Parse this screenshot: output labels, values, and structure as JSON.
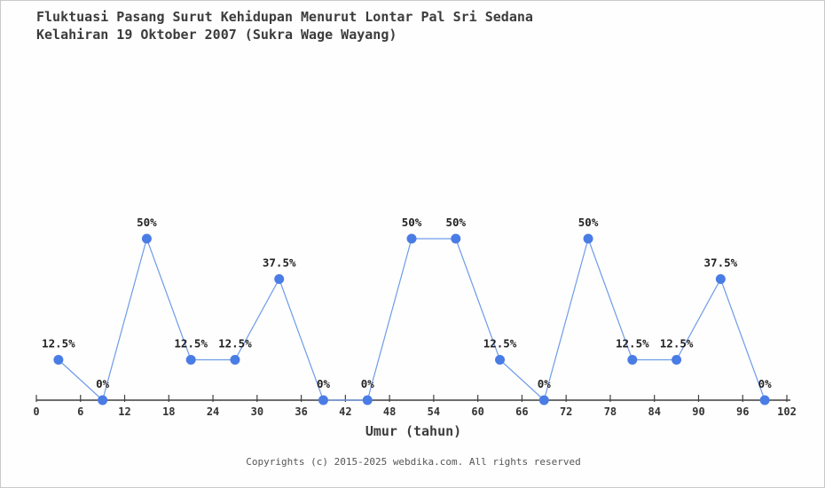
{
  "page": {
    "title_line1": "Fluktuasi Pasang Surut Kehidupan Menurut Lontar Pal Sri Sedana",
    "title_line2": "Kelahiran 19 Oktober 2007 (Sukra Wage Wayang)",
    "footer": "Copyrights (c) 2015-2025 webdika.com. All rights reserved"
  },
  "chart_data": {
    "type": "line",
    "title": "Fluktuasi Pasang Surut Kehidupan Menurut Lontar Pal Sri Sedana Kelahiran 19 Oktober 2007 (Sukra Wage Wayang)",
    "xlabel": "Umur (tahun)",
    "ylabel": "",
    "x": [
      3,
      9,
      15,
      21,
      27,
      33,
      39,
      45,
      51,
      57,
      63,
      69,
      75,
      81,
      87,
      93,
      99
    ],
    "values": [
      12.5,
      0,
      50,
      12.5,
      12.5,
      37.5,
      0,
      0,
      50,
      50,
      12.5,
      0,
      50,
      12.5,
      12.5,
      37.5,
      0
    ],
    "point_labels": [
      "12.5%",
      "0%",
      "50%",
      "12.5%",
      "12.5%",
      "37.5%",
      "0%",
      "0%",
      "50%",
      "50%",
      "12.5%",
      "0%",
      "50%",
      "12.5%",
      "12.5%",
      "37.5%",
      "0%"
    ],
    "x_ticks": [
      0,
      6,
      12,
      18,
      24,
      30,
      36,
      42,
      48,
      54,
      60,
      66,
      72,
      78,
      84,
      90,
      96,
      102
    ],
    "xlim": [
      0,
      102
    ],
    "ylim": [
      0,
      100
    ],
    "grid": false,
    "legend": "none",
    "colors": {
      "marker": "#4a7ce5",
      "line": "#6f9be8",
      "axis": "#3f3f3f",
      "tick_text": "#333333",
      "point_text": "#222222"
    }
  }
}
